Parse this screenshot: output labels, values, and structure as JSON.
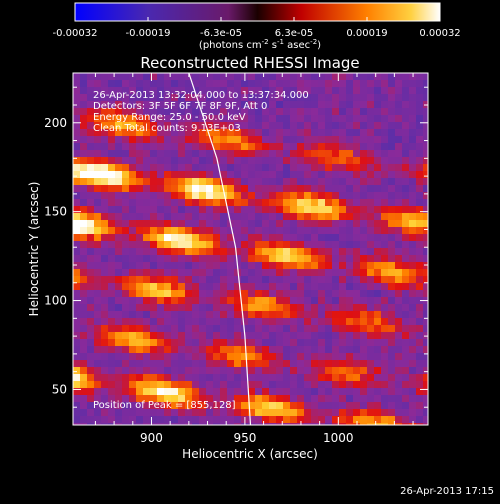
{
  "colorbar": {
    "ticks": [
      "-0.00032",
      "-0.00019",
      "-6.3e-05",
      "6.3e-05",
      "0.00019",
      "0.00032"
    ],
    "unit_text": "(photons cm",
    "unit_sup1": "-2",
    "unit_mid": " s",
    "unit_sup2": "-1",
    "unit_end": " asec",
    "unit_sup3": "-2",
    "unit_close": ")"
  },
  "annotations": {
    "time": "26-Apr-2013 13:32:04.000 to 13:37:34.000",
    "detectors": "Detectors: 3F 5F 6F 7F 8F 9F, Att 0",
    "energy": "Energy Range: 25.0 - 50.0 keV",
    "clean": "Clean     Total counts: 9.13E+03",
    "peak": "Position of Peak = [855,128]"
  },
  "footer": {
    "timestamp": "26-Apr-2013 17:15"
  },
  "chart_data": {
    "type": "heatmap",
    "title": "Reconstructed RHESSI Image",
    "xlabel": "Heliocentric X (arcsec)",
    "ylabel": "Heliocentric Y (arcsec)",
    "xlim": [
      858,
      1048
    ],
    "ylim": [
      30,
      228
    ],
    "xticks": [
      900,
      950,
      1000
    ],
    "yticks": [
      50,
      100,
      150,
      200
    ],
    "colorbar_range": [
      -0.00032,
      0.00032
    ],
    "colormap": [
      "#0000ff",
      "#5a2ea8",
      "#8a2a9a",
      "#e01010",
      "#ff8000",
      "#ffd030",
      "#ffffff"
    ],
    "limb_curve": [
      [
        920,
        228
      ],
      [
        935,
        180
      ],
      [
        945,
        130
      ],
      [
        950,
        80
      ],
      [
        953,
        30
      ]
    ],
    "bands": [
      {
        "y0": 205,
        "slope": -0.16,
        "amp": 0.55
      },
      {
        "y0": 175,
        "slope": -0.16,
        "amp": 0.95
      },
      {
        "y0": 145,
        "slope": -0.16,
        "amp": 0.85
      },
      {
        "y0": 115,
        "slope": -0.16,
        "amp": 0.6
      },
      {
        "y0": 85,
        "slope": -0.16,
        "amp": 0.55
      },
      {
        "y0": 58,
        "slope": -0.16,
        "amp": 0.8
      }
    ]
  }
}
